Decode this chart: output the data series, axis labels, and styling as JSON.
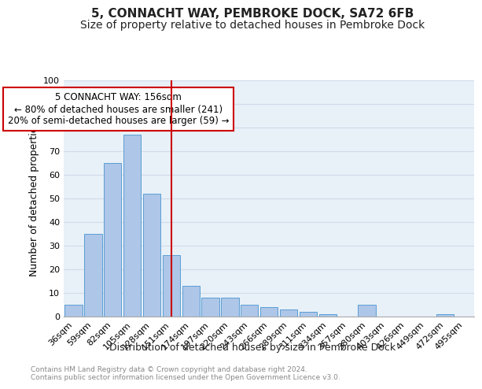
{
  "title_line1": "5, CONNACHT WAY, PEMBROKE DOCK, SA72 6FB",
  "title_line2": "Size of property relative to detached houses in Pembroke Dock",
  "xlabel": "Distribution of detached houses by size in Pembroke Dock",
  "ylabel": "Number of detached properties",
  "categories": [
    "36sqm",
    "59sqm",
    "82sqm",
    "105sqm",
    "128sqm",
    "151sqm",
    "174sqm",
    "197sqm",
    "220sqm",
    "243sqm",
    "266sqm",
    "289sqm",
    "311sqm",
    "334sqm",
    "357sqm",
    "380sqm",
    "403sqm",
    "426sqm",
    "449sqm",
    "472sqm",
    "495sqm"
  ],
  "values": [
    5,
    35,
    65,
    77,
    52,
    26,
    13,
    8,
    8,
    5,
    4,
    3,
    2,
    1,
    0,
    5,
    0,
    0,
    0,
    1,
    0
  ],
  "bar_color": "#aec6e8",
  "bar_edge_color": "#5a9fd4",
  "vline_x": 5,
  "vline_color": "#cc0000",
  "annotation_text": "5 CONNACHT WAY: 156sqm\n← 80% of detached houses are smaller (241)\n20% of semi-detached houses are larger (59) →",
  "annotation_box_color": "#ffffff",
  "annotation_box_edge": "#cc0000",
  "ylim": [
    0,
    100
  ],
  "yticks": [
    0,
    10,
    20,
    30,
    40,
    50,
    60,
    70,
    80,
    90,
    100
  ],
  "grid_color": "#d0dce8",
  "bg_color": "#e8f0f8",
  "footer_text": "Contains HM Land Registry data © Crown copyright and database right 2024.\nContains public sector information licensed under the Open Government Licence v3.0.",
  "title_fontsize": 11,
  "subtitle_fontsize": 10,
  "axis_label_fontsize": 9,
  "tick_fontsize": 8,
  "annotation_fontsize": 8.5
}
